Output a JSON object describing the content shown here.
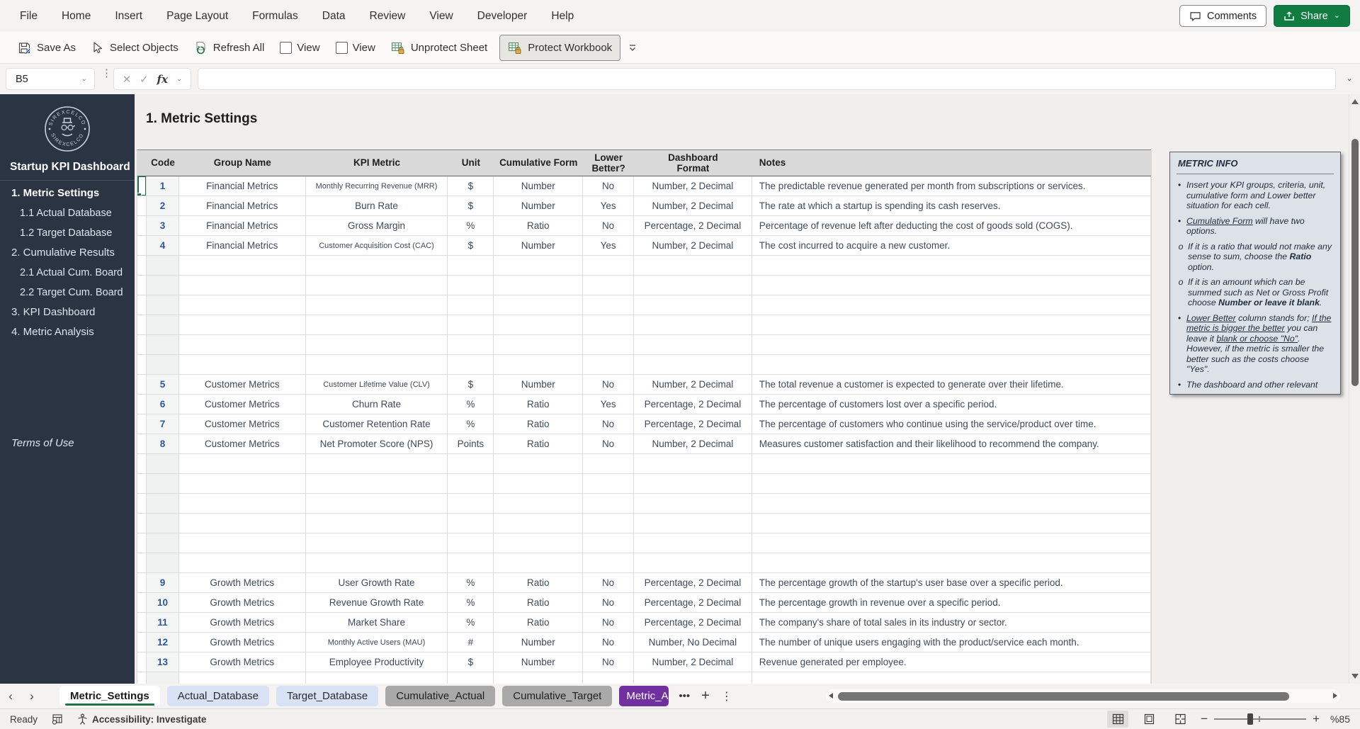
{
  "app": {
    "comments_label": "Comments",
    "share_label": "Share"
  },
  "menu": {
    "items": [
      "File",
      "Home",
      "Insert",
      "Page Layout",
      "Formulas",
      "Data",
      "Review",
      "View",
      "Developer",
      "Help"
    ]
  },
  "toolbar": {
    "save_as": "Save As",
    "select_objects": "Select Objects",
    "refresh_all": "Refresh All",
    "view1": "View",
    "view2": "View",
    "unprotect_sheet": "Unprotect Sheet",
    "protect_workbook": "Protect Workbook"
  },
  "formula_bar": {
    "name_box": "B5",
    "fx_label": "fx",
    "value": ""
  },
  "sidebar": {
    "logo_text": "SIREXCELCO",
    "title": "Startup KPI Dashboard",
    "items": [
      {
        "label": "1. Metric Settings",
        "indent": 0,
        "bold": true
      },
      {
        "label": "1.1 Actual Database",
        "indent": 1,
        "bold": false
      },
      {
        "label": "1.2 Target Database",
        "indent": 1,
        "bold": false
      },
      {
        "label": "2. Cumulative Results",
        "indent": 0,
        "bold": false
      },
      {
        "label": "2.1 Actual Cum. Board",
        "indent": 1,
        "bold": false
      },
      {
        "label": "2.2 Target Cum. Board",
        "indent": 1,
        "bold": false
      },
      {
        "label": "3. KPI Dashboard",
        "indent": 0,
        "bold": false
      },
      {
        "label": "4. Metric Analysis",
        "indent": 0,
        "bold": false
      }
    ],
    "footer": "Terms of Use"
  },
  "sheet": {
    "title": "1. Metric Settings"
  },
  "table": {
    "columns": [
      "Code",
      "Group Name",
      "KPI Metric",
      "Unit",
      "Cumulative Form",
      "Lower Better?",
      "Dashboard Format",
      "Notes"
    ],
    "sections": [
      {
        "type": "data",
        "rows": [
          {
            "code": "1",
            "group": "Financial Metrics",
            "metric": "Monthly Recurring Revenue (MRR)",
            "unit": "$",
            "cumulative": "Number",
            "lower": "No",
            "format": "Number, 2 Decimal",
            "notes": "The predictable revenue generated per month from subscriptions or services."
          },
          {
            "code": "2",
            "group": "Financial Metrics",
            "metric": "Burn Rate",
            "unit": "$",
            "cumulative": "Number",
            "lower": "Yes",
            "format": "Number, 2 Decimal",
            "notes": "The rate at which a startup is spending its cash reserves."
          },
          {
            "code": "3",
            "group": "Financial Metrics",
            "metric": "Gross Margin",
            "unit": "%",
            "cumulative": "Ratio",
            "lower": "No",
            "format": "Percentage, 2 Decimal",
            "notes": "Percentage of revenue left after deducting the cost of goods sold (COGS)."
          },
          {
            "code": "4",
            "group": "Financial Metrics",
            "metric": "Customer Acquisition Cost (CAC)",
            "unit": "$",
            "cumulative": "Number",
            "lower": "Yes",
            "format": "Number, 2 Decimal",
            "notes": "The cost incurred to acquire a new customer."
          }
        ]
      },
      {
        "type": "blank",
        "count": 6
      },
      {
        "type": "data",
        "rows": [
          {
            "code": "5",
            "group": "Customer Metrics",
            "metric": "Customer Lifetime Value (CLV)",
            "unit": "$",
            "cumulative": "Number",
            "lower": "No",
            "format": "Number, 2 Decimal",
            "notes": "The total revenue a customer is expected to generate over their lifetime."
          },
          {
            "code": "6",
            "group": "Customer Metrics",
            "metric": "Churn Rate",
            "unit": "%",
            "cumulative": "Ratio",
            "lower": "Yes",
            "format": "Percentage, 2 Decimal",
            "notes": "The percentage of customers lost over a specific period."
          },
          {
            "code": "7",
            "group": "Customer Metrics",
            "metric": "Customer Retention Rate",
            "unit": "%",
            "cumulative": "Ratio",
            "lower": "No",
            "format": "Percentage, 2 Decimal",
            "notes": "The percentage of customers who continue using the service/product over time."
          },
          {
            "code": "8",
            "group": "Customer Metrics",
            "metric": "Net Promoter Score (NPS)",
            "unit": "Points",
            "cumulative": "Ratio",
            "lower": "No",
            "format": "Number, 2 Decimal",
            "notes": "Measures customer satisfaction and their likelihood to recommend the company."
          }
        ]
      },
      {
        "type": "blank",
        "count": 6
      },
      {
        "type": "data",
        "rows": [
          {
            "code": "9",
            "group": "Growth Metrics",
            "metric": "User Growth Rate",
            "unit": "%",
            "cumulative": "Ratio",
            "lower": "No",
            "format": "Percentage, 2 Decimal",
            "notes": "The percentage growth of the startup's user base over a specific period."
          },
          {
            "code": "10",
            "group": "Growth Metrics",
            "metric": "Revenue Growth Rate",
            "unit": "%",
            "cumulative": "Ratio",
            "lower": "No",
            "format": "Percentage, 2 Decimal",
            "notes": "The percentage growth in revenue over a specific period."
          },
          {
            "code": "11",
            "group": "Growth Metrics",
            "metric": "Market Share",
            "unit": "%",
            "cumulative": "Ratio",
            "lower": "No",
            "format": "Percentage, 2 Decimal",
            "notes": "The company's share of total sales in its industry or sector."
          },
          {
            "code": "12",
            "group": "Growth Metrics",
            "metric": "Monthly Active Users (MAU)",
            "unit": "#",
            "cumulative": "Number",
            "lower": "No",
            "format": "Number, No Decimal",
            "notes": "The number of unique users engaging with the product/service each month."
          },
          {
            "code": "13",
            "group": "Growth Metrics",
            "metric": "Employee Productivity",
            "unit": "$",
            "cumulative": "Number",
            "lower": "No",
            "format": "Number, 2 Decimal",
            "notes": "Revenue generated per employee."
          }
        ]
      },
      {
        "type": "blank",
        "count": 1
      }
    ]
  },
  "selection": {
    "name_box": "B5",
    "selected_row_code": "1"
  },
  "info_panel": {
    "title": "METRIC INFO",
    "bullets": [
      {
        "marker": "bullet",
        "segments": [
          {
            "text": "Insert your KPI groups, criteria, unit, cumulative form and Lower better situation for each cell."
          }
        ]
      },
      {
        "marker": "bullet",
        "segments": [
          {
            "text": "Cumulative Form",
            "underline": true
          },
          {
            "text": " will have two options."
          }
        ]
      },
      {
        "marker": "circle",
        "segments": [
          {
            "text": "If it is a ratio that would not make any sense to sum, choose the "
          },
          {
            "text": "Ratio",
            "bold": true
          },
          {
            "text": " option."
          }
        ]
      },
      {
        "marker": "circle",
        "segments": [
          {
            "text": "If it is an amount which can be summed such as Net or Gross Profit choose "
          },
          {
            "text": "Number or leave it blank",
            "bold": true
          },
          {
            "text": "."
          }
        ]
      },
      {
        "marker": "bullet",
        "segments": [
          {
            "text": "Lower Better",
            "underline": true
          },
          {
            "text": " column stands for; "
          },
          {
            "text": "If the metric is bigger the better",
            "underline": true
          },
          {
            "text": " you can leave it "
          },
          {
            "text": "blank or choose \"No\"",
            "underline": true
          },
          {
            "text": ". However, if the metric is smaller the better such as the costs choose \"Yes\"."
          }
        ]
      },
      {
        "marker": "bullet",
        "segments": [
          {
            "text": "The dashboard and other relevant"
          }
        ]
      }
    ]
  },
  "sheet_tabs": {
    "tabs": [
      {
        "label": "Metric_Settings",
        "style": "active"
      },
      {
        "label": "Actual_Database",
        "style": "blue"
      },
      {
        "label": "Target_Database",
        "style": "blue"
      },
      {
        "label": "Cumulative_Actual",
        "style": "gray"
      },
      {
        "label": "Cumulative_Target",
        "style": "gray"
      },
      {
        "label": "Metric_A",
        "style": "purple"
      }
    ],
    "more": "•••",
    "add": "+",
    "menu": "⋮"
  },
  "status_bar": {
    "ready": "Ready",
    "accessibility": "Accessibility: Investigate",
    "zoom": "%85"
  },
  "colors": {
    "excel_green": "#107C41",
    "selection_green": "#1E7145",
    "tab_blue": "#D9E1F5",
    "tab_gray": "#A9A9A9",
    "tab_purple": "#7030A0",
    "sidebar_bg": "#2A3442",
    "table_header_fill": "#D9D9D9",
    "info_panel_bg": "#DDE1E8",
    "code_text": "#2F5597",
    "cell_text": "#3E4A5C"
  }
}
